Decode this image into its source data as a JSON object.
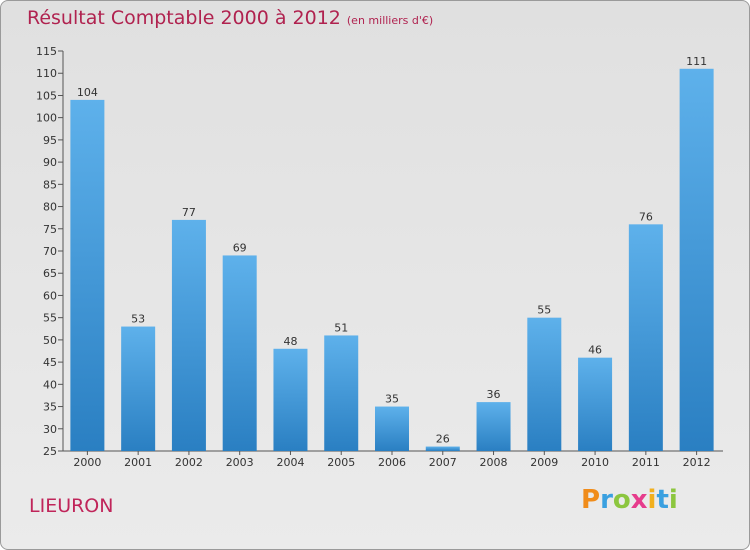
{
  "title": "Résultat Comptable 2000 à 2012",
  "subtitle": "(en milliers d'€)",
  "commune": "LIEURON",
  "logo": {
    "text": "Proxiti",
    "letters": [
      {
        "ch": "P",
        "color": "#f08c1a"
      },
      {
        "ch": "r",
        "color": "#3aa0e0"
      },
      {
        "ch": "o",
        "color": "#8cc63f"
      },
      {
        "ch": "x",
        "color": "#e63c8c"
      },
      {
        "ch": "i",
        "color": "#f2b01e"
      },
      {
        "ch": "t",
        "color": "#3aa0e0"
      },
      {
        "ch": "i",
        "color": "#8cc63f"
      }
    ]
  },
  "colors": {
    "title": "#b0224f",
    "bar_light": "#5eb1eb",
    "bar_dark": "#2a7fc2",
    "commune": "#c0255a"
  },
  "chart_data": {
    "type": "bar",
    "categories": [
      "2000",
      "2001",
      "2002",
      "2003",
      "2004",
      "2005",
      "2006",
      "2007",
      "2008",
      "2009",
      "2010",
      "2011",
      "2012"
    ],
    "values": [
      104,
      53,
      77,
      69,
      48,
      51,
      35,
      26,
      36,
      55,
      46,
      76,
      111
    ],
    "ylim": [
      25,
      115
    ],
    "yticks": [
      25,
      30,
      35,
      40,
      45,
      50,
      55,
      60,
      65,
      70,
      75,
      80,
      85,
      90,
      95,
      100,
      105,
      110,
      115
    ],
    "grid": false,
    "legend": "none"
  }
}
